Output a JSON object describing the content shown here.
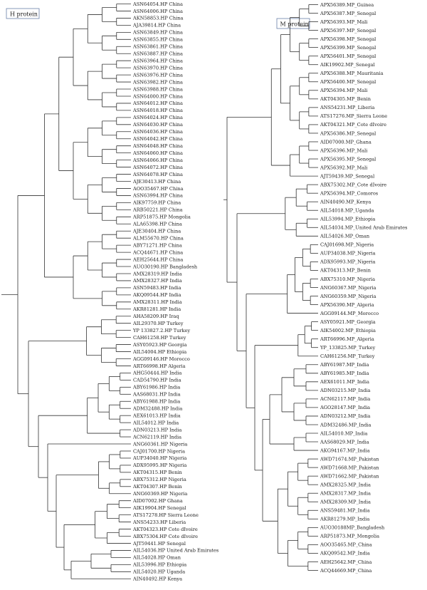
{
  "panels": [
    {
      "id": "h",
      "title": "H protein",
      "leaves": [
        "ASN64054.HP China",
        "ASN64006.HP China",
        "AKN58853.HP China",
        "AJA39814.HP China",
        "ASN63849.HP China",
        "ASN63855.HP China",
        "ASN63861.HP China",
        "ASN63887.HP China",
        "ASN63964.HP China",
        "ASN63970.HP China",
        "ASN63976.HP China",
        "ASN63982.HP China",
        "ASN63988.HP China",
        "ASN64000.HP China",
        "ASN64012.HP China",
        "ASN64018.HP China",
        "ASN64024.HP China",
        "ASN64030.HP China",
        "ASN64036.HP China",
        "ASN64042.HP China",
        "ASN64048.HP China",
        "ASN64060.HP China",
        "ASN64066.HP China",
        "ASN64072.HP China",
        "ASN64078.HP China",
        "AJE30413.HP China",
        "AOO35467.HP China",
        "ASN63994.HP China",
        "AIK97759.HP China",
        "ARB50221.HP China",
        "ARP51875.HP Mongolia",
        "ALA65398.HP China",
        "AJE30404.HP China",
        "ALM55670.HP China",
        "ABY71271.HP China",
        "ACQ44671.HP China",
        "AEH25644.HP China",
        "AUO30190.HP Bangladesh",
        "AMX28319.HP India",
        "AMX28327.HP India",
        "ASN59483.HP India",
        "AKQ09544.HP India",
        "AMX28311.HP India",
        "AKR81281.HP India",
        "AHA58209.HP Iraq",
        "AIL29370.HP Turkey",
        "YP 133827.2.HP Turkey",
        "CAH61258.HP Turkey",
        "ASY05923.HP Georgia",
        "AIL54004.HP Ethiopia",
        "AGG09146.HP Morocco",
        "ART66998.HP Algeria",
        "AHG50444.HP India",
        "CAD54790.HP India",
        "ABY61986.HP India",
        "AAS68031.HP India",
        "ABY61988.HP India",
        "ADM32488.HP India",
        "AEX61013.HP India",
        "AIL54012.HP India",
        "ADN03213.HP India",
        "ACN62119.HP India",
        "ANG60361.HP Nigeria",
        "CAJ01700.HP Nigeria",
        "AUP34040.HP Nigeria",
        "ADX95995.HP Nigeria",
        "AKT04315.HP Benin",
        "ABX75312.HP Nigeria",
        "AKT04307.HP Benin",
        "ANG60369.HP Nigeria",
        "AID07002.HP Ghana",
        "AIK19904.HP Senegal",
        "ATS17278.HP Sierra Leone",
        "ANS54233.HP Liberia",
        "AKT04323.HP Cote dIvoire",
        "ABX75304.HP Cote dIvoire",
        "AJT59441.HP Senegal",
        "AIL54036.HP United Arab Emirates",
        "AIL54028.HP Oman",
        "AIL53996.HP Ethiopia",
        "AIL54020.HP Uganda",
        "AIN40492.HP Kenya"
      ]
    },
    {
      "id": "m",
      "title": "M protein",
      "leaves": [
        "APX56389.MP_Guinea",
        "APX56387.MP_Senegal",
        "APX56393.MP_Mali",
        "APX56397.MP_Senegal",
        "APX56398.MP_Senegal",
        "APX56399.MP_Senegal",
        "APX56401.MP_Senegal",
        "AIK19902.MP_Senegal",
        "APX56388.MP_Mauritania",
        "APX56400.MP_Senegal",
        "APX56394.MP_Mali",
        "AKT04305.MP_Benin",
        "ANS54231.MP_Liberia",
        "ATS17276.MP_Sierra Leone",
        "AKT04321.MP_Cote dIvoire",
        "APX56386.MP_Senegal",
        "AID07000.MP_Ghana",
        "APX56396.MP_Mali",
        "APX56395.MP_Senegal",
        "APX56392.MP_Mali",
        "AJT59439.MP_Senegal",
        "ABX75302.MP_Cote dIvoire",
        "APX56394.MP_Comoros",
        "AIN40490.MP_Kenya",
        "AIL54018.MP_Uganda",
        "AIL53994.MP_Ethiopia",
        "AIL54034.MP_United Arab Emirates",
        "AIL54026.MP_Oman",
        "CAJ01698.MP_Nigeria",
        "AUP34038.MP_Nigeria",
        "ADX95993.MP_Nigeria",
        "AKT04313.MP_Benin",
        "ABX75310.MP_Nigeria",
        "ANG60367.MP_Nigeria",
        "ANG60359.MP_Nigeria",
        "APX56390.MP_Algeria",
        "AGG09144.MP_Morocco",
        "ASY05921.MP_Georgia",
        "AIK54002.MP_Ethiopia",
        "ART66996.MP_Algeria",
        "YP_133825.MP_Turkey",
        "CAH61256.MP_Turkey",
        "ABY61987.MP_India",
        "ABY61985.MP_India",
        "AEX61011.MP_India",
        "ADN03215.MP_India",
        "ACN62117.MP_India",
        "AGO28147.MP_India",
        "ADN03212.MP_India",
        "ADM32486.MP_India",
        "AIL54010.MP_India",
        "AAS68029.MP_India",
        "AKG94167.MP_India",
        "AWD71674.MP_Pakistan",
        "AWD71668.MP_Pakistan",
        "AWD71662.MP_Pakistan",
        "AMX28325.MP_India",
        "AMX28317.MP_India",
        "AMX28309.MP_India",
        "ANS59481.MP_India",
        "AKR81279.MP_India",
        "AUO30188MP_Bangladesh",
        "ARP51873.MP_Mongolia",
        "AOO35465.MP_China",
        "AKQ09542.MP_India",
        "AEH25642.MP_China",
        "ACQ44669.MP_China"
      ]
    }
  ]
}
